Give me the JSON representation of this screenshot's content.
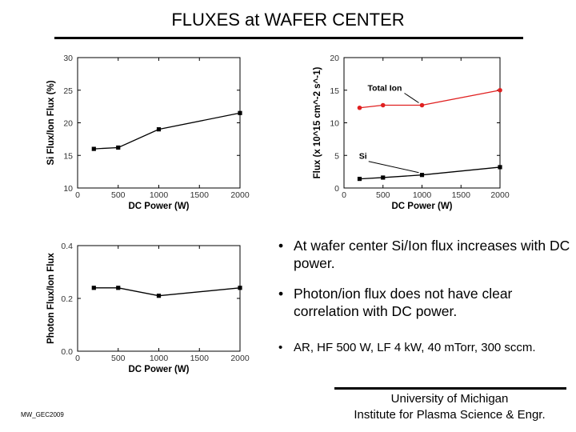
{
  "title": "FLUXES at WAFER CENTER",
  "bullets": [
    "At wafer center Si/Ion flux increases with DC power.",
    "Photon/ion flux does not have clear correlation with DC power.",
    "AR, HF 500 W, LF 4 kW, 40 mTorr, 300 sccm."
  ],
  "bullet_symbol": "•",
  "footer": {
    "line1": "University of Michigan",
    "line2": "Institute for Plasma Science & Engr.",
    "code": "MW_GEC2009"
  },
  "chart_data": [
    {
      "type": "line",
      "xlabel": "DC Power (W)",
      "ylabel": "Si Flux/Ion Flux (%)",
      "xlim": [
        0,
        2000
      ],
      "ylim": [
        10,
        30
      ],
      "xticks": [
        0,
        500,
        1000,
        1500,
        2000
      ],
      "yticks": [
        10,
        15,
        20,
        25,
        30
      ],
      "series": [
        {
          "x": [
            200,
            500,
            1000,
            2000
          ],
          "values": [
            16.0,
            16.2,
            19.0,
            21.5
          ],
          "color": "#000000",
          "marker": "square"
        }
      ]
    },
    {
      "type": "line",
      "xlabel": "DC Power (W)",
      "ylabel": "Flux (x 10^15 cm^-2 s^-1)",
      "xlim": [
        0,
        2000
      ],
      "ylim": [
        0,
        20
      ],
      "xticks": [
        0,
        500,
        1000,
        1500,
        2000
      ],
      "yticks": [
        0,
        5,
        10,
        15,
        20
      ],
      "series": [
        {
          "name": "Total Ion",
          "x": [
            200,
            500,
            1000,
            2000
          ],
          "values": [
            12.3,
            12.7,
            12.7,
            15.0
          ],
          "color": "#e02020",
          "marker": "circle"
        },
        {
          "name": "Si",
          "x": [
            200,
            500,
            1000,
            2000
          ],
          "values": [
            1.4,
            1.6,
            2.0,
            3.2
          ],
          "color": "#000000",
          "marker": "square"
        }
      ]
    },
    {
      "type": "line",
      "xlabel": "DC Power (W)",
      "ylabel": "Photon Flux/Ion Flux",
      "xlim": [
        0,
        2000
      ],
      "ylim": [
        0.0,
        0.4
      ],
      "xticks": [
        0,
        500,
        1000,
        1500,
        2000
      ],
      "yticks": [
        "0.0",
        "0.2",
        "0.4"
      ],
      "series": [
        {
          "x": [
            200,
            500,
            1000,
            2000
          ],
          "values": [
            0.24,
            0.24,
            0.21,
            0.24
          ],
          "color": "#000000",
          "marker": "square"
        }
      ]
    }
  ]
}
